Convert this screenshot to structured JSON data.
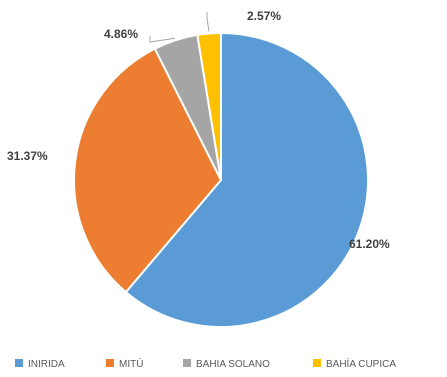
{
  "chart_data": {
    "type": "pie",
    "title": "",
    "categories": [
      "INIRIDA",
      "MITÚ",
      "BAHIA SOLANO",
      "BAHÍA CUPICA"
    ],
    "values": [
      61.2,
      31.37,
      4.86,
      2.57
    ],
    "data_labels": [
      "61.20%",
      "31.37%",
      "4.86%",
      "2.57%"
    ],
    "colors": [
      "#5b9bd5",
      "#ed7d31",
      "#a5a5a5",
      "#ffc000"
    ],
    "start_angle_deg": 0,
    "direction": "clockwise",
    "legend": {
      "position": "bottom",
      "entries": [
        "INIRIDA",
        "MITÚ",
        "BAHIA SOLANO",
        "BAHÍA CUPICA"
      ]
    }
  }
}
